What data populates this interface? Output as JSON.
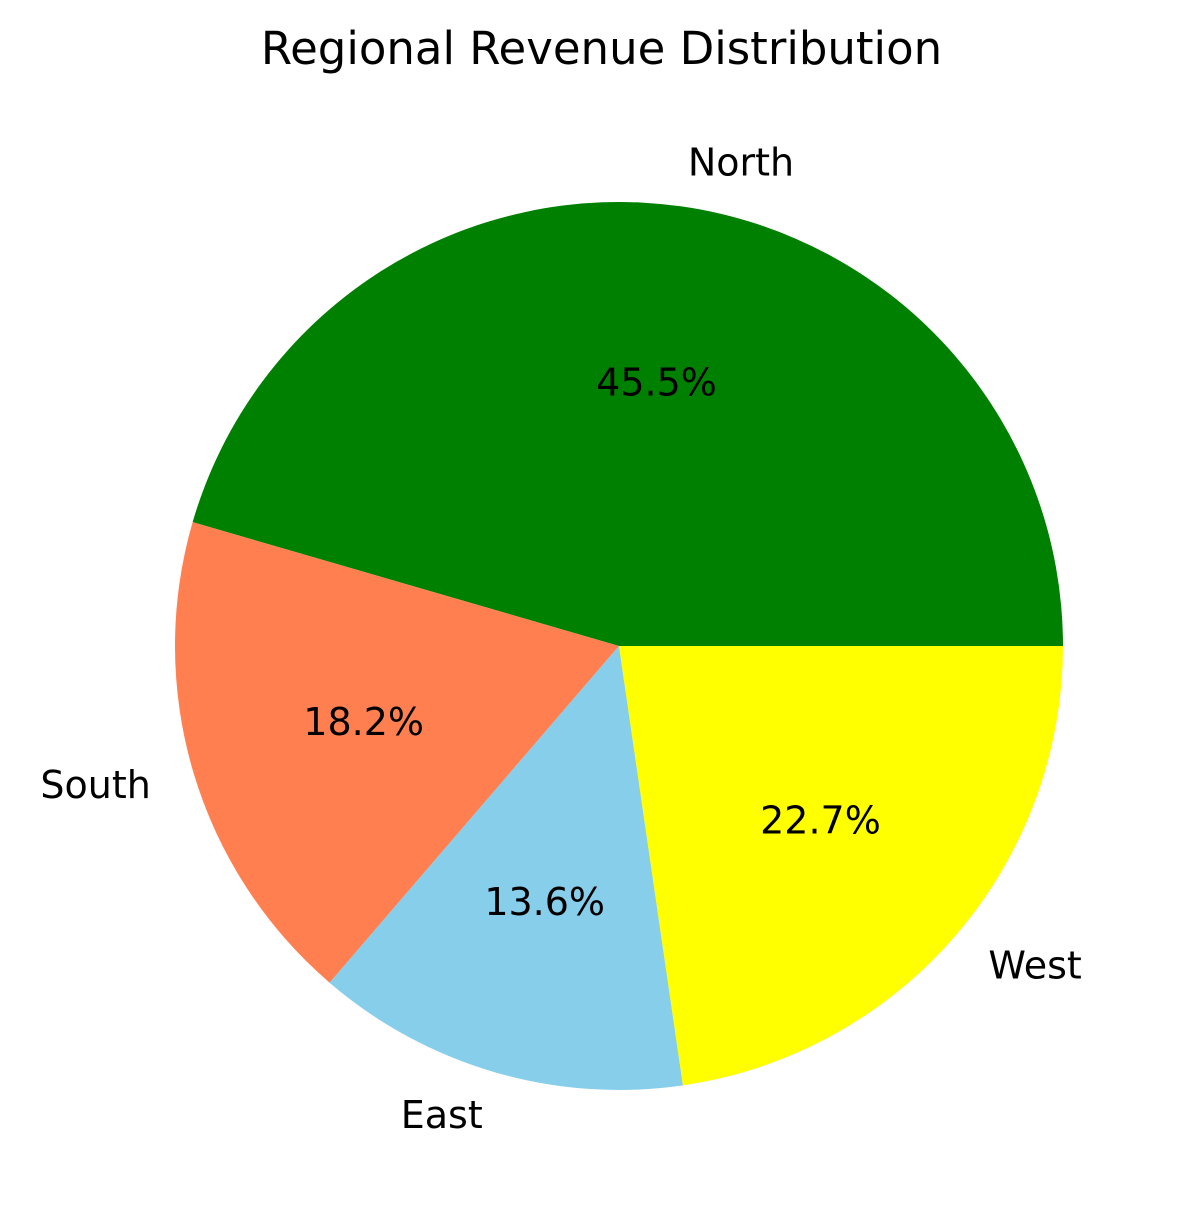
{
  "chart_data": {
    "type": "pie",
    "title": "Regional Revenue Distribution",
    "categories": [
      "North",
      "South",
      "East",
      "West"
    ],
    "values": [
      45.5,
      18.2,
      13.6,
      22.7
    ],
    "value_labels": [
      "45.5%",
      "18.2%",
      "13.6%",
      "22.7%"
    ],
    "colors": [
      "#008000",
      "#ff7f50",
      "#87ceeb",
      "#ffff00"
    ],
    "start_angle_deg": 0,
    "direction": "counterclockwise",
    "legend": "none"
  }
}
